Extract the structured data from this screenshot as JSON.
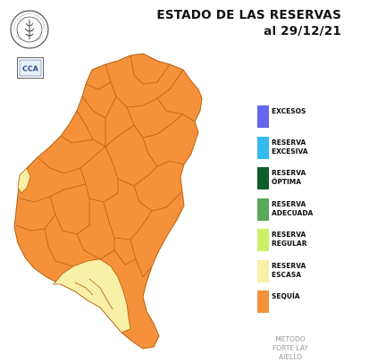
{
  "header": {
    "title_line1": "ESTADO DE LAS RESERVAS",
    "title_line2": "al 29/12/21"
  },
  "logos": {
    "seal_icon": "bolsa-de-cereales-seal-icon",
    "cca_text": "CCA"
  },
  "legend": {
    "items": [
      {
        "line1": "EXCESOS",
        "line2": "",
        "color": "#6666ee"
      },
      {
        "line1": "RESERVA",
        "line2": "EXCESIVA",
        "color": "#33bbee"
      },
      {
        "line1": "RESERVA",
        "line2": "ÓPTIMA",
        "color": "#0d5e2a"
      },
      {
        "line1": "RESERVA",
        "line2": "ADECUADA",
        "color": "#5aa85a"
      },
      {
        "line1": "RESERVA",
        "line2": "REGULAR",
        "color": "#ccf06a"
      },
      {
        "line1": "RESERVA",
        "line2": "ESCASA",
        "color": "#f8f0a6"
      },
      {
        "line1": "SEQUÍA",
        "line2": "",
        "color": "#f5913a"
      }
    ]
  },
  "method": {
    "line1": "METODO",
    "line2": "FORTE LAY",
    "line3": "AIELLO"
  },
  "map_colors": {
    "drought": "#f5913a",
    "scarce": "#f8f0a6",
    "borders": "#b8620f"
  }
}
